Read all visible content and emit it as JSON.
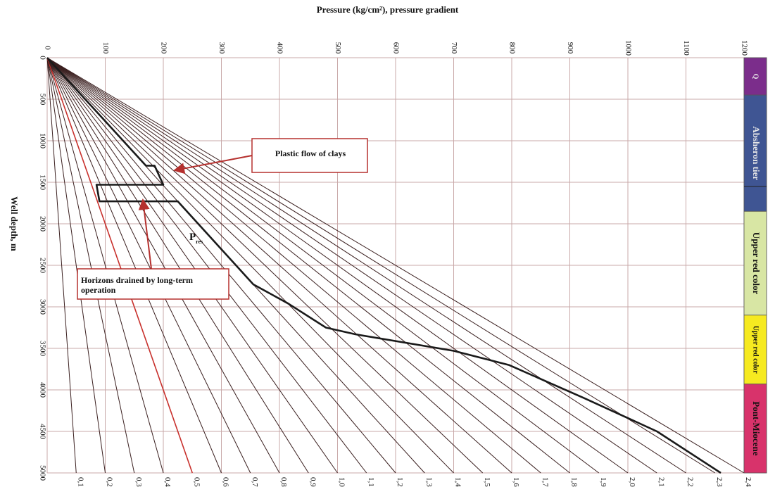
{
  "chart_data": {
    "type": "line",
    "title": "Pressure (kg/cm²), pressure gradient",
    "ylabel": "Well depth, m",
    "x_ticks": [
      0,
      100,
      200,
      300,
      400,
      500,
      600,
      700,
      800,
      900,
      1000,
      1100,
      1200
    ],
    "y_ticks": [
      0,
      500,
      1000,
      1500,
      2000,
      2500,
      3000,
      3500,
      4000,
      4500,
      5000
    ],
    "xlim": [
      0,
      1200
    ],
    "ylim": [
      0,
      5000
    ],
    "gradients": [
      "0,1",
      "0,2",
      "0,3",
      "0,4",
      "0,5",
      "0,6",
      "0,7",
      "0,8",
      "0,9",
      "1,0",
      "1,1",
      "1,2",
      "1,3",
      "1,4",
      "1,5",
      "1,6",
      "1,7",
      "1,8",
      "1,9",
      "2,0",
      "2,1",
      "2,2",
      "2,3",
      "2,4"
    ],
    "gradient_values": [
      0.1,
      0.2,
      0.3,
      0.4,
      0.5,
      0.6,
      0.7,
      0.8,
      0.9,
      1.0,
      1.1,
      1.2,
      1.3,
      1.4,
      1.5,
      1.6,
      1.7,
      1.8,
      1.9,
      2.0,
      2.1,
      2.2,
      2.3,
      2.4
    ],
    "highlight_gradient": 0.5,
    "reservoir_pressure": {
      "label": "P",
      "subscript": "res",
      "points": [
        {
          "depth": 0,
          "pressure": 0
        },
        {
          "depth": 1300,
          "pressure": 170
        },
        {
          "depth": 1300,
          "pressure": 185
        },
        {
          "depth": 1530,
          "pressure": 200
        },
        {
          "depth": 1530,
          "pressure": 85
        },
        {
          "depth": 1730,
          "pressure": 90
        },
        {
          "depth": 1730,
          "pressure": 225
        },
        {
          "depth": 2730,
          "pressure": 355
        },
        {
          "depth": 2960,
          "pressure": 415
        },
        {
          "depth": 3250,
          "pressure": 480
        },
        {
          "depth": 3330,
          "pressure": 530
        },
        {
          "depth": 3530,
          "pressure": 700
        },
        {
          "depth": 3700,
          "pressure": 795
        },
        {
          "depth": 4100,
          "pressure": 925
        },
        {
          "depth": 4500,
          "pressure": 1050
        },
        {
          "depth": 5000,
          "pressure": 1160
        }
      ]
    },
    "annotations": [
      {
        "text": "Plastic flow of clays"
      },
      {
        "text": "Horizons drained by long-term operation"
      }
    ],
    "stratigraphy": [
      {
        "label": "Q",
        "from": 0,
        "to": 450,
        "color": "#7b2d8b"
      },
      {
        "label": "Absheron tier",
        "from": 450,
        "to": 1850,
        "color": "#3f5593"
      },
      {
        "label": "Upper red color",
        "from": 1850,
        "to": 3100,
        "color": "#d8e6a4"
      },
      {
        "label": "Upper red color",
        "from": 3100,
        "to": 3930,
        "color": "#f6ea20"
      },
      {
        "label": "Pont-Miocene",
        "from": 3930,
        "to": 5000,
        "color": "#d8336b"
      }
    ],
    "legend": "none"
  },
  "colors": {
    "grid": "#c9a9a9",
    "gradient_line": "#3a1f1f",
    "highlight_line": "#c8302c",
    "curve": "#1a1a1a",
    "callout_border": "#b5302e",
    "arrow": "#b5302e"
  }
}
